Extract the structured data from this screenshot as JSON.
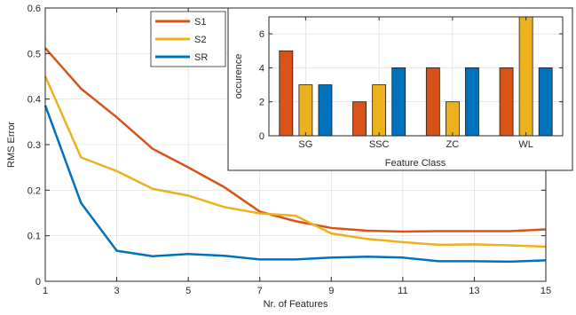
{
  "colors": {
    "S1": "#D95319",
    "S2": "#EDB120",
    "SR": "#0072BD",
    "axis": "#262626",
    "grid": "#d9d9d9"
  },
  "chart_data": [
    {
      "type": "line",
      "xlabel": "Nr. of Features",
      "ylabel": "RMS Error",
      "xlim": [
        1,
        15
      ],
      "ylim": [
        0,
        0.6
      ],
      "xticks": [
        1,
        3,
        5,
        7,
        9,
        11,
        13,
        15
      ],
      "yticks": [
        0,
        0.1,
        0.2,
        0.3,
        0.4,
        0.5,
        0.6
      ],
      "grid": true,
      "legend_position": "top-inside, left of inset",
      "x": [
        1,
        2,
        3,
        4,
        5,
        6,
        7,
        8,
        9,
        10,
        11,
        12,
        13,
        14,
        15
      ],
      "series": [
        {
          "name": "S1",
          "color": "#D95319",
          "values": [
            0.512,
            0.423,
            0.36,
            0.291,
            0.25,
            0.207,
            0.153,
            0.132,
            0.117,
            0.111,
            0.109,
            0.11,
            0.11,
            0.11,
            0.114
          ]
        },
        {
          "name": "S2",
          "color": "#EDB120",
          "values": [
            0.45,
            0.272,
            0.242,
            0.203,
            0.188,
            0.163,
            0.149,
            0.144,
            0.105,
            0.093,
            0.086,
            0.08,
            0.081,
            0.079,
            0.076
          ]
        },
        {
          "name": "SR",
          "color": "#0072BD",
          "values": [
            0.386,
            0.172,
            0.067,
            0.055,
            0.06,
            0.056,
            0.048,
            0.048,
            0.052,
            0.054,
            0.052,
            0.044,
            0.044,
            0.043,
            0.046
          ]
        }
      ]
    },
    {
      "type": "bar",
      "xlabel": "Feature Class",
      "ylabel": "occurence",
      "ylim": [
        0,
        7
      ],
      "yticks": [
        0,
        2,
        4,
        6
      ],
      "grid": true,
      "categories": [
        "SG",
        "SSC",
        "ZC",
        "WL"
      ],
      "series": [
        {
          "name": "S1",
          "color": "#D95319",
          "values": [
            5,
            2,
            4,
            4
          ]
        },
        {
          "name": "S2",
          "color": "#EDB120",
          "values": [
            3,
            3,
            2,
            7
          ]
        },
        {
          "name": "SR",
          "color": "#0072BD",
          "values": [
            3,
            4,
            4,
            4
          ]
        }
      ]
    }
  ]
}
